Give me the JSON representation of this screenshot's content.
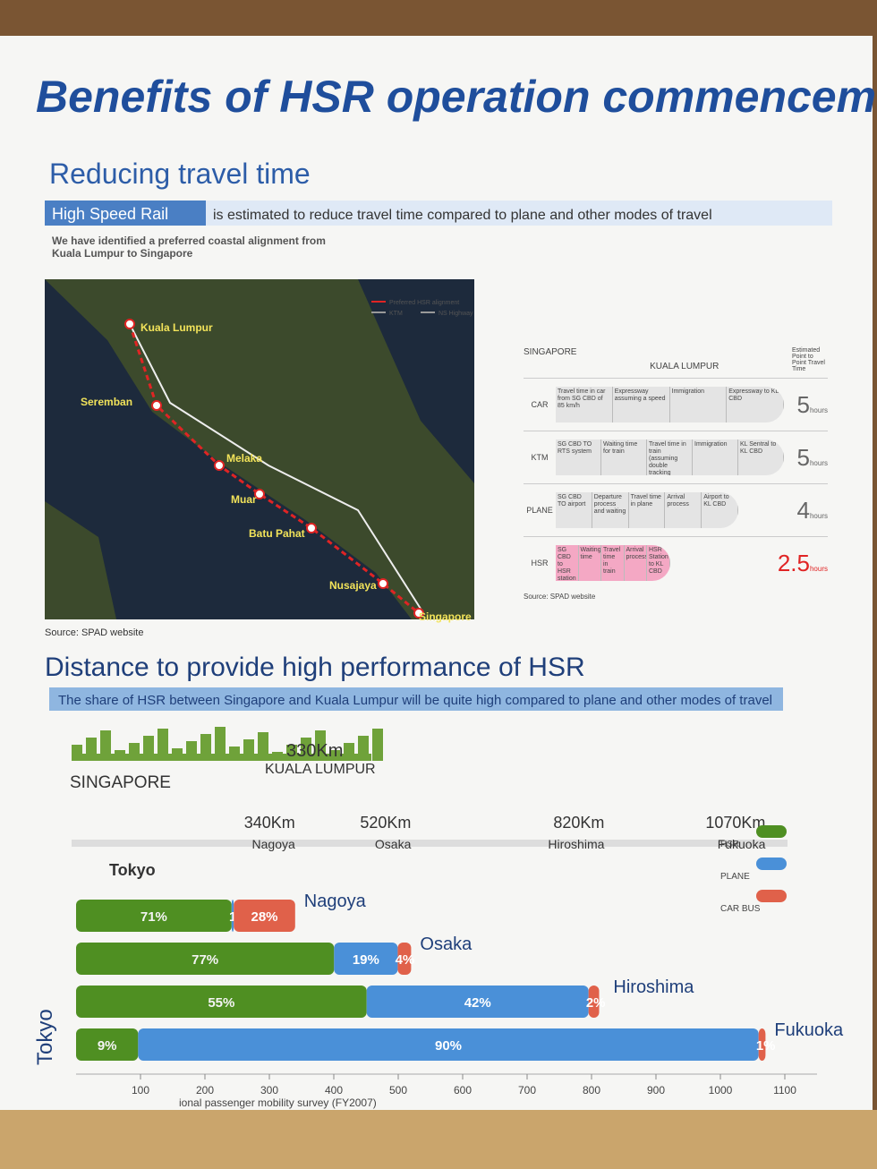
{
  "title": "Benefits of HSR operation commencement",
  "travel": {
    "heading": "Reducing travel time",
    "banner_highlight": "High Speed Rail",
    "banner": "is estimated to reduce travel time compared to plane and other modes of travel",
    "map": {
      "note": "We have identified a preferred coastal alignment from Kuala Lumpur to Singapore",
      "legend": [
        "Preferred HSR alignment",
        "KTM",
        "NS Highway"
      ],
      "stations": [
        "Kuala Lumpur",
        "Seremban",
        "Melaka",
        "Muar",
        "Batu Pahat",
        "Nusajaya",
        "Singapore"
      ],
      "source": "Source: SPAD website"
    },
    "table": {
      "from": "SINGAPORE",
      "to": "KUALA LUMPUR",
      "time_header": "Estimated Point to Point Travel Time",
      "unit": "hours",
      "source": "Source: SPAD website",
      "modes": [
        {
          "name": "CAR",
          "hours": 5,
          "segments": [
            "Travel time in car from SG CBD of 85 km/h",
            "Expressway assuming a speed",
            "Immigration",
            "Expressway to KL CBD"
          ]
        },
        {
          "name": "KTM",
          "hours": 5,
          "segments": [
            "SG CBD TO RTS system",
            "Waiting time for train",
            "Travel time in train (assuming double tracking upgrades)",
            "Immigration",
            "KL Sentral to KL CBD"
          ]
        },
        {
          "name": "PLANE",
          "hours": 4,
          "segments": [
            "SG CBD TO airport",
            "Departure process and waiting",
            "Travel time in plane",
            "Arrival process",
            "Airport to KL CBD"
          ]
        },
        {
          "name": "HSR",
          "hours": 2.5,
          "segments": [
            "SG CBD to HSR station",
            "Waiting time",
            "Travel time in train",
            "Arrival process",
            "HSR Station to KL CBD"
          ]
        }
      ]
    }
  },
  "distance": {
    "heading": "Distance to provide high performance of HSR",
    "banner": "The share of HSR between Singapore and Kuala Lumpur will be quite high compared to plane and other modes of travel",
    "sg_kl": {
      "from": "SINGAPORE",
      "distance": "330Km",
      "to": "KUALA LUMPUR"
    },
    "legend": [
      "HSR",
      "PLANE",
      "CAR BUS"
    ],
    "colors": [
      "#4f8f22",
      "#4a90d8",
      "#e0614a"
    ],
    "origin": "Tokyo",
    "stops": [
      {
        "name": "Nagoya",
        "distance": {
          "value": 340,
          "label": "340Km"
        },
        "shares": [
          71,
          1,
          28
        ],
        "share_labels": [
          "71%",
          "1%",
          "28%"
        ]
      },
      {
        "name": "Osaka",
        "distance": {
          "value": 520,
          "label": "520Km"
        },
        "shares": [
          77,
          19,
          4
        ],
        "share_labels": [
          "77%",
          "19%",
          "4%"
        ]
      },
      {
        "name": "Hiroshima",
        "distance": {
          "value": 820,
          "label": "820Km"
        },
        "shares": [
          55,
          42,
          2
        ],
        "share_labels": [
          "55%",
          "42%",
          "2%"
        ]
      },
      {
        "name": "Fukuoka",
        "distance": {
          "value": 1070,
          "label": "1070Km"
        },
        "shares": [
          9,
          90,
          1
        ],
        "share_labels": [
          "9%",
          "90%",
          "1%"
        ]
      }
    ],
    "xlim": [
      0,
      1150
    ],
    "xticks": [
      100,
      200,
      300,
      400,
      500,
      600,
      700,
      800,
      900,
      1000,
      1100
    ],
    "source": "ional passenger mobility survey (FY2007)"
  }
}
